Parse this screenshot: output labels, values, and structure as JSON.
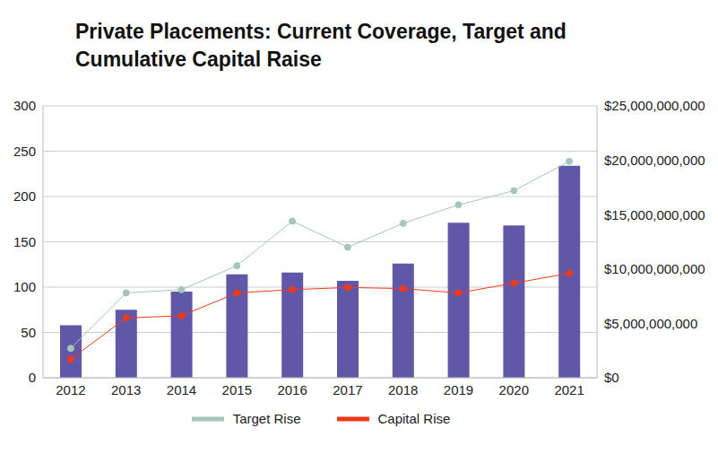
{
  "chart_data": {
    "type": "bar",
    "title": "Private Placements: Current Coverage, Target and Cumulative Capital Raise",
    "categories": [
      "2012",
      "2013",
      "2014",
      "2015",
      "2016",
      "2017",
      "2018",
      "2019",
      "2020",
      "2021"
    ],
    "series": [
      {
        "type": "bar",
        "color": "#6157a8",
        "values": [
          58,
          75,
          95,
          114,
          116,
          107,
          126,
          171,
          168,
          234
        ]
      },
      {
        "name": "Target Rise",
        "type": "line",
        "axis": "y2",
        "color": "#a5c6b8",
        "marker": "circle",
        "values": [
          2700000000,
          7800000000,
          8100000000,
          10300000000,
          14400000000,
          12000000000,
          14200000000,
          15900000000,
          17200000000,
          19900000000
        ]
      },
      {
        "name": "Capital Rise",
        "type": "line",
        "axis": "y2",
        "color": "#ee3a1a",
        "marker": "circle",
        "values": [
          1700000000,
          5500000000,
          5700000000,
          7800000000,
          8100000000,
          8300000000,
          8200000000,
          7800000000,
          8700000000,
          9600000000
        ]
      }
    ],
    "ylim": [
      0,
      300
    ],
    "yticks": [
      0,
      50,
      100,
      150,
      200,
      250,
      300
    ],
    "y2lim": [
      0,
      25000000000
    ],
    "y2ticks": [
      {
        "value": 0,
        "label": "$0"
      },
      {
        "value": 5000000000,
        "label": "$5,000,000,000"
      },
      {
        "value": 10000000000,
        "label": "$10,000,000,000"
      },
      {
        "value": 15000000000,
        "label": "$15,000,000,000"
      },
      {
        "value": 20000000000,
        "label": "$20,000,000,000"
      },
      {
        "value": 25000000000,
        "label": "$25,000,000,000"
      }
    ],
    "grid": true,
    "legend": "bottom"
  }
}
